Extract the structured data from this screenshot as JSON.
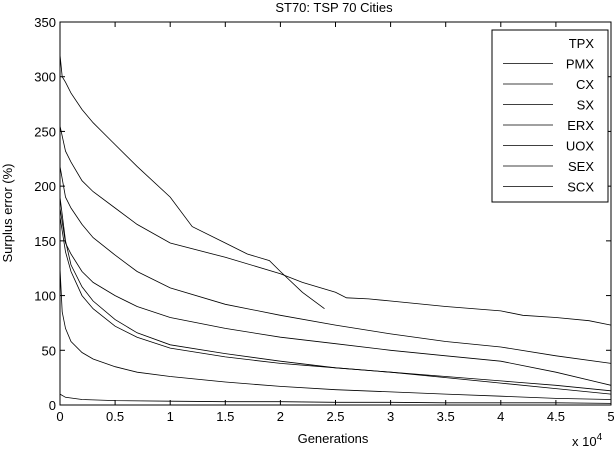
{
  "chart_data": {
    "type": "line",
    "title": "ST70: TSP 70 Cities",
    "xlabel": "Generations",
    "ylabel": "Surplus error (%)",
    "x_exponent_label": "x 10",
    "x_exponent_power": "4",
    "xlim": [
      0,
      5
    ],
    "ylim": [
      0,
      350
    ],
    "xticks": [
      0,
      0.5,
      1,
      1.5,
      2,
      2.5,
      3,
      3.5,
      4,
      4.5,
      5
    ],
    "xtick_labels": [
      "0",
      "0.5",
      "1",
      "1.5",
      "2",
      "2.5",
      "3",
      "3.5",
      "4",
      "4.5",
      "5"
    ],
    "yticks": [
      0,
      50,
      100,
      150,
      200,
      250,
      300,
      350
    ],
    "ytick_labels": [
      "0",
      "50",
      "100",
      "150",
      "200",
      "250",
      "300",
      "350"
    ],
    "grid": false,
    "legend_position": "top-right",
    "line_color": "#000000",
    "series": [
      {
        "name": "TPX",
        "x": [
          0,
          0.05,
          0.2,
          0.5,
          1,
          1.5,
          2,
          2.5,
          3,
          3.5,
          4,
          4.5,
          5
        ],
        "y": [
          10,
          7,
          5,
          4,
          3.5,
          3,
          3,
          2.5,
          2.5,
          2,
          2,
          2,
          1.5
        ]
      },
      {
        "name": "PMX",
        "x": [
          0,
          0.02,
          0.05,
          0.1,
          0.2,
          0.3,
          0.5,
          0.7,
          1,
          1.2,
          1.5,
          1.7,
          1.9,
          2,
          2.2,
          2.4
        ],
        "y": [
          320,
          300,
          295,
          285,
          270,
          258,
          238,
          218,
          190,
          163,
          148,
          138,
          132,
          122,
          103,
          88
        ]
      },
      {
        "name": "CX",
        "x": [
          0,
          0.05,
          0.1,
          0.2,
          0.3,
          0.5,
          0.7,
          1,
          1.5,
          2,
          2.2,
          2.5,
          2.6,
          2.8,
          3,
          3.5,
          4,
          4.2,
          4.5,
          4.8,
          5
        ],
        "y": [
          255,
          232,
          222,
          205,
          195,
          180,
          165,
          148,
          135,
          120,
          112,
          103,
          98,
          97,
          95,
          90,
          86,
          82,
          80,
          77,
          73
        ]
      },
      {
        "name": "SX",
        "x": [
          0,
          0.05,
          0.1,
          0.2,
          0.3,
          0.5,
          0.7,
          1,
          1.5,
          2,
          2.5,
          3,
          3.5,
          4,
          4.5,
          5
        ],
        "y": [
          218,
          190,
          180,
          165,
          153,
          137,
          122,
          107,
          92,
          82,
          73,
          65,
          58,
          53,
          45,
          38
        ]
      },
      {
        "name": "ERX",
        "x": [
          0,
          0.05,
          0.1,
          0.2,
          0.3,
          0.5,
          0.7,
          1,
          1.5,
          2,
          2.5,
          3,
          3.5,
          4,
          4.5,
          5
        ],
        "y": [
          180,
          148,
          138,
          122,
          112,
          100,
          90,
          80,
          70,
          62,
          56,
          50,
          45,
          40,
          30,
          18
        ]
      },
      {
        "name": "UOX",
        "x": [
          0,
          0.05,
          0.1,
          0.2,
          0.3,
          0.5,
          0.7,
          1,
          1.5,
          2,
          2.5,
          3,
          3.5,
          4,
          4.5,
          5
        ],
        "y": [
          190,
          150,
          128,
          108,
          95,
          78,
          66,
          55,
          47,
          40,
          34,
          30,
          26,
          22,
          18,
          13
        ]
      },
      {
        "name": "SEX",
        "x": [
          0,
          0.05,
          0.1,
          0.2,
          0.3,
          0.5,
          0.7,
          1,
          1.5,
          2,
          2.5,
          3,
          3.5,
          4,
          4.5,
          5
        ],
        "y": [
          172,
          140,
          122,
          100,
          88,
          72,
          62,
          52,
          44,
          38,
          34,
          30,
          25,
          20,
          15,
          10
        ]
      },
      {
        "name": "SCX",
        "x": [
          0,
          0.02,
          0.05,
          0.1,
          0.2,
          0.3,
          0.5,
          0.7,
          1,
          1.5,
          2,
          2.5,
          3,
          3.5,
          4,
          4.5,
          5
        ],
        "y": [
          125,
          85,
          70,
          58,
          48,
          42,
          35,
          30,
          26,
          21,
          17,
          14,
          12,
          10,
          8,
          6,
          5
        ]
      }
    ]
  }
}
